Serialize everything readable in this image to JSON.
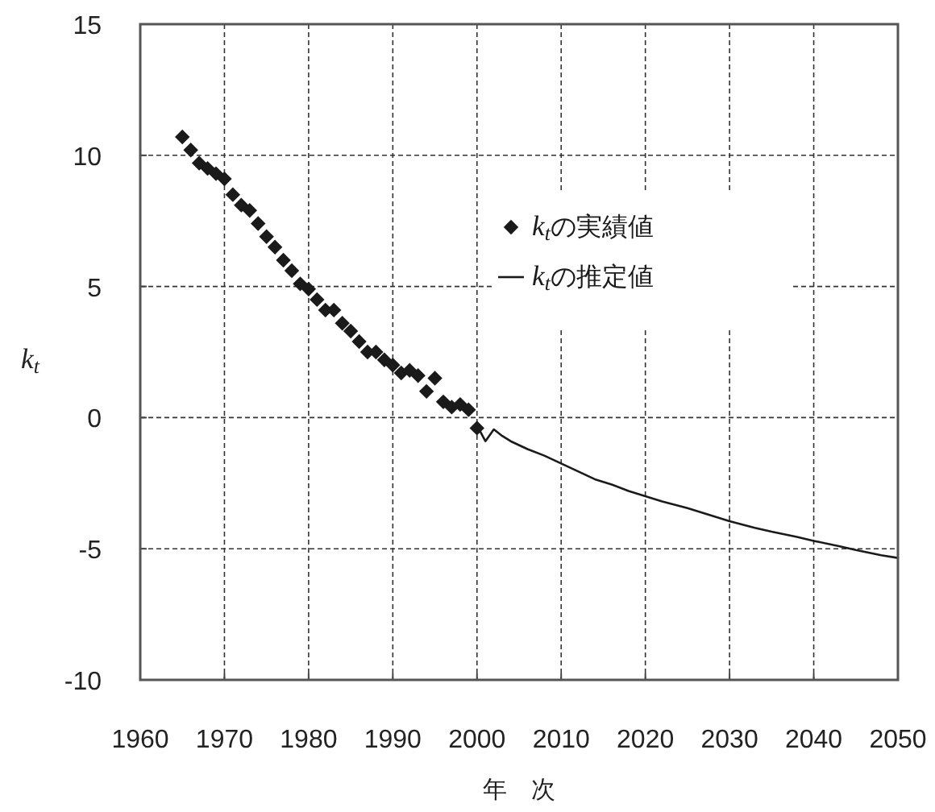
{
  "chart_data": {
    "type": "scatter",
    "xlabel": "年　次",
    "ylabel": "k$_{t}$",
    "xlim": [
      1960,
      2050
    ],
    "xticks": [
      1960,
      1970,
      1980,
      1990,
      2000,
      2010,
      2020,
      2030,
      2040,
      2050
    ],
    "ylim": [
      -10,
      15
    ],
    "yticks": [
      -10,
      -5,
      0,
      5,
      10,
      15
    ],
    "grid": true,
    "legend": "top right",
    "series": [
      {
        "name": "k$_{t}$の実績値",
        "marker": "diamond",
        "color": "#1a1a1a",
        "x": [
          1965,
          1966,
          1967,
          1968,
          1969,
          1970,
          1971,
          1972,
          1973,
          1974,
          1975,
          1976,
          1977,
          1978,
          1979,
          1980,
          1981,
          1982,
          1983,
          1984,
          1985,
          1986,
          1987,
          1988,
          1989,
          1990,
          1991,
          1992,
          1993,
          1994,
          1995,
          1996,
          1997,
          1998,
          1999,
          2000
        ],
        "values": [
          10.7,
          10.2,
          9.7,
          9.5,
          9.3,
          9.1,
          8.5,
          8.1,
          7.9,
          7.4,
          6.9,
          6.5,
          6.0,
          5.6,
          5.1,
          4.9,
          4.5,
          4.1,
          4.1,
          3.6,
          3.3,
          2.9,
          2.5,
          2.5,
          2.2,
          2.0,
          1.7,
          1.8,
          1.6,
          1.0,
          1.5,
          0.6,
          0.4,
          0.5,
          0.3,
          -0.4
        ]
      },
      {
        "name": "k$_{t}$の推定値",
        "type": "line",
        "line_style": "solid",
        "color": "#1a1a1a",
        "x": [
          2000,
          2001,
          2002,
          2003,
          2004,
          2006,
          2008,
          2010,
          2012,
          2014,
          2016,
          2018,
          2020,
          2022,
          2025,
          2028,
          2030,
          2033,
          2035,
          2038,
          2040,
          2043,
          2045,
          2048,
          2050
        ],
        "values": [
          -0.3,
          -0.9,
          -0.45,
          -0.7,
          -0.9,
          -1.2,
          -1.45,
          -1.75,
          -2.05,
          -2.35,
          -2.55,
          -2.8,
          -3.0,
          -3.2,
          -3.45,
          -3.75,
          -3.95,
          -4.2,
          -4.35,
          -4.55,
          -4.7,
          -4.9,
          -5.05,
          -5.25,
          -5.35
        ]
      }
    ]
  }
}
